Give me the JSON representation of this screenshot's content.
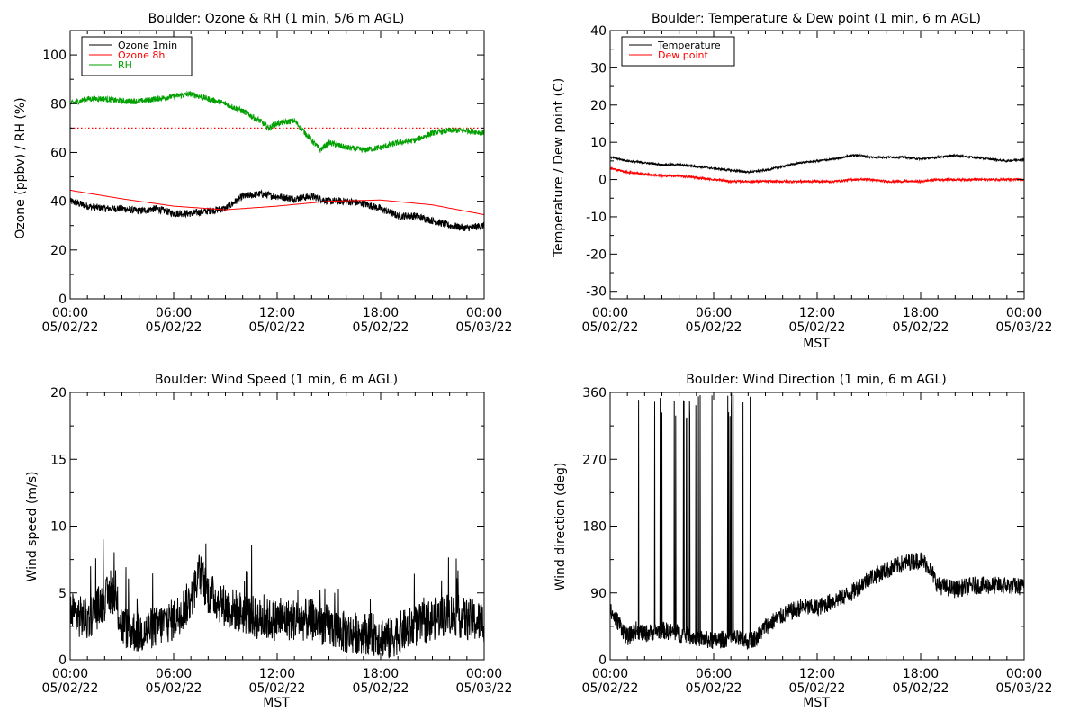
{
  "chart_data": [
    {
      "id": "ozone_rh",
      "type": "line",
      "title": "Boulder: Ozone & RH (1 min, 5/6 m AGL)",
      "ylabel": "Ozone (ppbv) / RH (%)",
      "xlabel": "",
      "xlim": [
        0,
        24
      ],
      "ylim": [
        0,
        110
      ],
      "x_tick_labels": [
        {
          "time": "00:00",
          "date": "05/02/22"
        },
        {
          "time": "06:00",
          "date": "05/02/22"
        },
        {
          "time": "12:00",
          "date": "05/02/22"
        },
        {
          "time": "18:00",
          "date": "05/02/22"
        },
        {
          "time": "00:00",
          "date": "05/03/22"
        }
      ],
      "y_ticks": [
        0,
        20,
        40,
        60,
        80,
        100
      ],
      "legend": {
        "position": "top-left",
        "entries": [
          {
            "name": "Ozone 1min",
            "color": "#000000"
          },
          {
            "name": "Ozone 8h",
            "color": "#ff0000"
          },
          {
            "name": "RH",
            "color": "#00a000"
          }
        ]
      },
      "reference_line": {
        "y": 70,
        "color": "#ff0000",
        "style": "dotted"
      },
      "series": [
        {
          "name": "Ozone 1min",
          "color": "#000000",
          "noise": 1.5,
          "x": [
            0,
            1,
            2,
            3,
            4,
            5,
            6,
            7,
            8,
            9,
            10,
            11,
            12,
            13,
            14,
            15,
            16,
            17,
            18,
            19,
            20,
            21,
            22,
            23,
            24
          ],
          "y": [
            40,
            38,
            37,
            37,
            36,
            37,
            35,
            35,
            36,
            37,
            42,
            43,
            42,
            41,
            42,
            40,
            40,
            39,
            37,
            34,
            34,
            32,
            30,
            29,
            30
          ]
        },
        {
          "name": "Ozone 8h",
          "color": "#ff0000",
          "noise": 0,
          "x": [
            0,
            3,
            6,
            9,
            12,
            15,
            18,
            21,
            24
          ],
          "y": [
            44.5,
            41,
            38,
            36.5,
            38,
            40,
            40.5,
            38.5,
            34.5
          ]
        },
        {
          "name": "RH",
          "color": "#00a000",
          "noise": 1.2,
          "x": [
            0,
            1,
            2,
            3,
            4,
            5,
            6,
            7,
            8,
            9,
            10,
            11,
            11.5,
            12,
            13,
            14,
            14.5,
            15,
            16,
            17,
            18,
            19,
            20,
            21,
            22,
            23,
            24
          ],
          "y": [
            80,
            82,
            82,
            81,
            81,
            82,
            83,
            84,
            82,
            80,
            77,
            73,
            70,
            72,
            73,
            65,
            61,
            64,
            62,
            61,
            62,
            64,
            65,
            68,
            69,
            69,
            68
          ]
        }
      ]
    },
    {
      "id": "temp_dew",
      "type": "line",
      "title": "Boulder: Temperature & Dew point (1 min, 6 m AGL)",
      "ylabel": "Temperature / Dew point (C)",
      "xlabel": "MST",
      "xlim": [
        0,
        24
      ],
      "ylim": [
        -32,
        40
      ],
      "x_tick_labels": [
        {
          "time": "00:00",
          "date": "05/02/22"
        },
        {
          "time": "06:00",
          "date": "05/02/22"
        },
        {
          "time": "12:00",
          "date": "05/02/22"
        },
        {
          "time": "18:00",
          "date": "05/02/22"
        },
        {
          "time": "00:00",
          "date": "05/03/22"
        }
      ],
      "y_ticks": [
        -30,
        -20,
        -10,
        0,
        10,
        20,
        30,
        40
      ],
      "legend": {
        "position": "top-left",
        "entries": [
          {
            "name": "Temperature",
            "color": "#000000"
          },
          {
            "name": "Dew point",
            "color": "#ff0000"
          }
        ]
      },
      "series": [
        {
          "name": "Temperature",
          "color": "#000000",
          "noise": 0.25,
          "x": [
            0,
            1,
            2,
            3,
            4,
            5,
            6,
            7,
            8,
            9,
            10,
            11,
            12,
            13,
            14,
            14.5,
            15,
            16,
            17,
            18,
            19,
            20,
            21,
            22,
            23,
            24
          ],
          "y": [
            6,
            5,
            4.5,
            4,
            4,
            3.5,
            3,
            2.5,
            2,
            2.5,
            3.5,
            4.5,
            5,
            5.5,
            6.5,
            6.5,
            6,
            6,
            6,
            5.5,
            6,
            6.5,
            6,
            5.5,
            5,
            5.5
          ]
        },
        {
          "name": "Dew point",
          "color": "#ff0000",
          "noise": 0.3,
          "x": [
            0,
            1,
            2,
            3,
            4,
            5,
            6,
            7,
            8,
            9,
            10,
            11,
            12,
            13,
            14,
            15,
            16,
            17,
            18,
            19,
            20,
            21,
            22,
            23,
            24
          ],
          "y": [
            3,
            2,
            1.5,
            1,
            1,
            0.5,
            0,
            -0.5,
            -0.5,
            -0.5,
            -0.5,
            -0.5,
            -0.5,
            -0.5,
            0,
            0,
            -0.5,
            -0.5,
            -0.5,
            0,
            0,
            0,
            0,
            0,
            0
          ]
        }
      ]
    },
    {
      "id": "wind_speed",
      "type": "line",
      "title": "Boulder: Wind Speed (1 min, 6 m AGL)",
      "ylabel": "Wind speed (m/s)",
      "xlabel": "MST",
      "xlim": [
        0,
        24
      ],
      "ylim": [
        0,
        20
      ],
      "x_tick_labels": [
        {
          "time": "00:00",
          "date": "05/02/22"
        },
        {
          "time": "06:00",
          "date": "05/02/22"
        },
        {
          "time": "12:00",
          "date": "05/02/22"
        },
        {
          "time": "18:00",
          "date": "05/02/22"
        },
        {
          "time": "00:00",
          "date": "05/03/22"
        }
      ],
      "y_ticks": [
        0,
        5,
        10,
        15,
        20
      ],
      "series": [
        {
          "name": "",
          "color": "#000000",
          "noise": 1.6,
          "x": [
            0,
            1,
            2,
            2.5,
            3,
            4,
            5,
            6,
            7,
            7.5,
            8,
            9,
            10,
            11,
            12,
            13,
            14,
            15,
            16,
            17,
            18,
            18.5,
            19,
            20,
            21,
            22,
            23,
            24
          ],
          "y": [
            3.5,
            3,
            4.5,
            5,
            2.5,
            2,
            2.5,
            3,
            4.5,
            6.5,
            5,
            4,
            3.5,
            3,
            3,
            3,
            3,
            2.5,
            2,
            2,
            1.8,
            1.5,
            2,
            2.5,
            3,
            3.5,
            3,
            2.8
          ]
        }
      ]
    },
    {
      "id": "wind_dir",
      "type": "line",
      "title": "Boulder: Wind Direction (1 min, 6 m AGL)",
      "ylabel": "Wind direction (deg)",
      "xlabel": "MST",
      "xlim": [
        0,
        24
      ],
      "ylim": [
        0,
        360
      ],
      "x_tick_labels": [
        {
          "time": "00:00",
          "date": "05/02/22"
        },
        {
          "time": "06:00",
          "date": "05/02/22"
        },
        {
          "time": "12:00",
          "date": "05/02/22"
        },
        {
          "time": "18:00",
          "date": "05/02/22"
        },
        {
          "time": "00:00",
          "date": "05/03/22"
        }
      ],
      "y_ticks": [
        0,
        90,
        180,
        270,
        360
      ],
      "series": [
        {
          "name": "",
          "color": "#000000",
          "noise": 12,
          "wrap_between": [
            1.6,
            8.3
          ],
          "x": [
            0,
            0.5,
            1,
            1.5,
            2,
            3,
            4,
            5,
            6,
            7,
            8,
            8.5,
            9,
            10,
            11,
            12,
            13,
            14,
            15,
            16,
            17,
            18,
            18.5,
            19,
            20,
            21,
            22,
            23,
            24
          ],
          "y": [
            65,
            50,
            30,
            40,
            35,
            40,
            35,
            30,
            25,
            30,
            25,
            30,
            45,
            60,
            70,
            70,
            80,
            90,
            110,
            120,
            130,
            135,
            125,
            100,
            95,
            100,
            100,
            100,
            98
          ]
        }
      ]
    }
  ]
}
